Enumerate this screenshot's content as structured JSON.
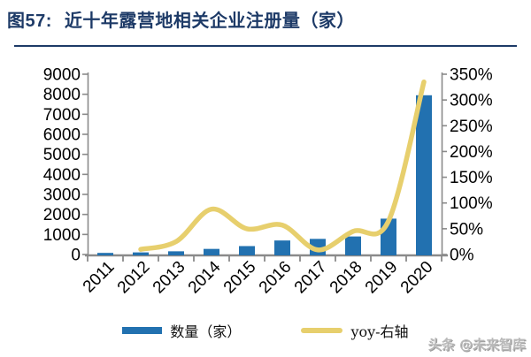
{
  "header": {
    "figure_label": "图57:",
    "title": "近十年露营地相关企业注册量（家）"
  },
  "legend": {
    "bar_label": "数量（家）",
    "line_label": "yoy-右轴"
  },
  "watermark": "头条 @未来智库",
  "colors": {
    "bar": "#2271b0",
    "line": "#e7cf6d",
    "title": "#1d3a67",
    "axis": "#8a8a8a",
    "tick_text": "#000000"
  },
  "chart_data": {
    "type": "bar",
    "title": "近十年露营地相关企业注册量（家）",
    "categories": [
      "2011",
      "2012",
      "2013",
      "2014",
      "2015",
      "2016",
      "2017",
      "2018",
      "2019",
      "2020"
    ],
    "series": [
      {
        "name": "数量（家）",
        "type": "bar",
        "axis": "left",
        "values": [
          80,
          105,
          160,
          280,
          420,
          700,
          780,
          900,
          1790,
          7950
        ]
      },
      {
        "name": "yoy-右轴",
        "type": "line",
        "axis": "right",
        "unit": "%",
        "values": [
          null,
          10,
          25,
          88,
          50,
          57,
          9,
          45,
          65,
          335
        ]
      }
    ],
    "left_axis": {
      "min": 0,
      "max": 9000,
      "step": 1000,
      "tick_labels": [
        "0",
        "1000",
        "2000",
        "3000",
        "4000",
        "5000",
        "6000",
        "7000",
        "8000",
        "9000"
      ]
    },
    "right_axis": {
      "min": 0,
      "max": 350,
      "step": 50,
      "suffix": "%",
      "tick_labels": [
        "0%",
        "50%",
        "100%",
        "150%",
        "200%",
        "250%",
        "300%",
        "350%"
      ]
    },
    "grid": false,
    "legend_position": "bottom"
  }
}
